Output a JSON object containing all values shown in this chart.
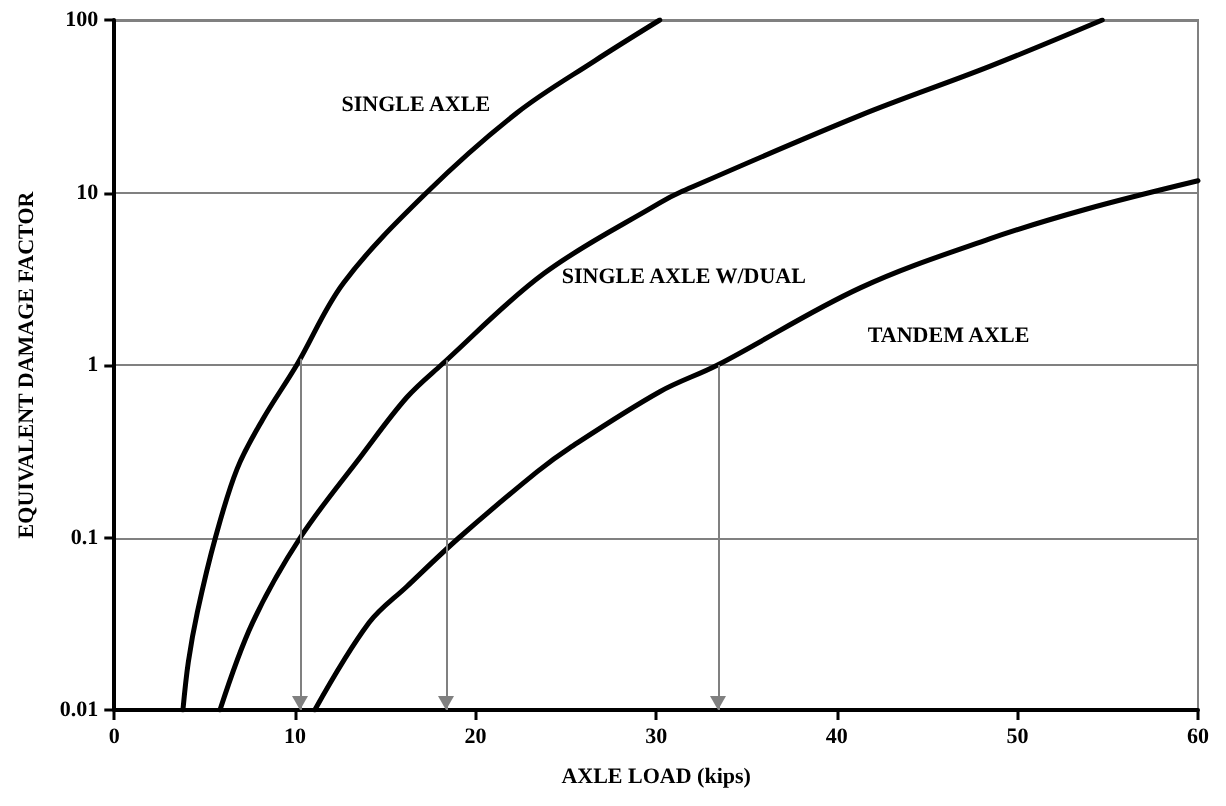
{
  "chart_data": {
    "type": "line",
    "xlabel": "AXLE LOAD (kips)",
    "ylabel": "EQUIVALENT DAMAGE FACTOR",
    "xlim": [
      0,
      60
    ],
    "xticks": [
      0,
      10,
      20,
      30,
      40,
      50,
      60
    ],
    "ylim": [
      0.01,
      100
    ],
    "yticks": [
      0.01,
      0.1,
      1,
      10,
      100
    ],
    "log": "y",
    "grid": "y",
    "marker": "none",
    "line_style": "solid",
    "series": [
      {
        "name": "SINGLE AXLE",
        "color": "#000000",
        "x": [
          3.8,
          4.1,
          4.6,
          5.6,
          6.8,
          8.2,
          10.1,
          12.7,
          17.3,
          22.3,
          26.6,
          30.2
        ],
        "values": [
          0.01,
          0.019,
          0.037,
          0.1,
          0.25,
          0.48,
          1,
          3.0,
          10,
          29,
          58,
          100
        ]
      },
      {
        "name": "SINGLE AXLE W/DUAL",
        "color": "#000000",
        "x": [
          5.85,
          7.65,
          10.3,
          13.7,
          16.2,
          18.1,
          23.8,
          30.2,
          31.3,
          41.3,
          48.5,
          54.7
        ],
        "values": [
          0.01,
          0.032,
          0.1,
          0.3,
          0.65,
          1,
          3.4,
          8.7,
          10,
          28,
          54,
          100
        ]
      },
      {
        "name": "TANDEM AXLE",
        "color": "#000000",
        "x": [
          11.1,
          14.1,
          16.2,
          19.1,
          23.4,
          25.2,
          30.2,
          33.4,
          41.3,
          48.5,
          53.8,
          60
        ],
        "values": [
          0.01,
          0.032,
          0.052,
          0.1,
          0.24,
          0.33,
          0.7,
          1,
          2.8,
          5.4,
          8.0,
          11.7
        ]
      }
    ],
    "ref_lines": [
      {
        "axis": "x",
        "value": 10.3,
        "color": "#808080"
      },
      {
        "axis": "x",
        "value": 18.4,
        "color": "#808080"
      },
      {
        "axis": "x",
        "value": 33.4,
        "color": "#808080"
      }
    ]
  }
}
